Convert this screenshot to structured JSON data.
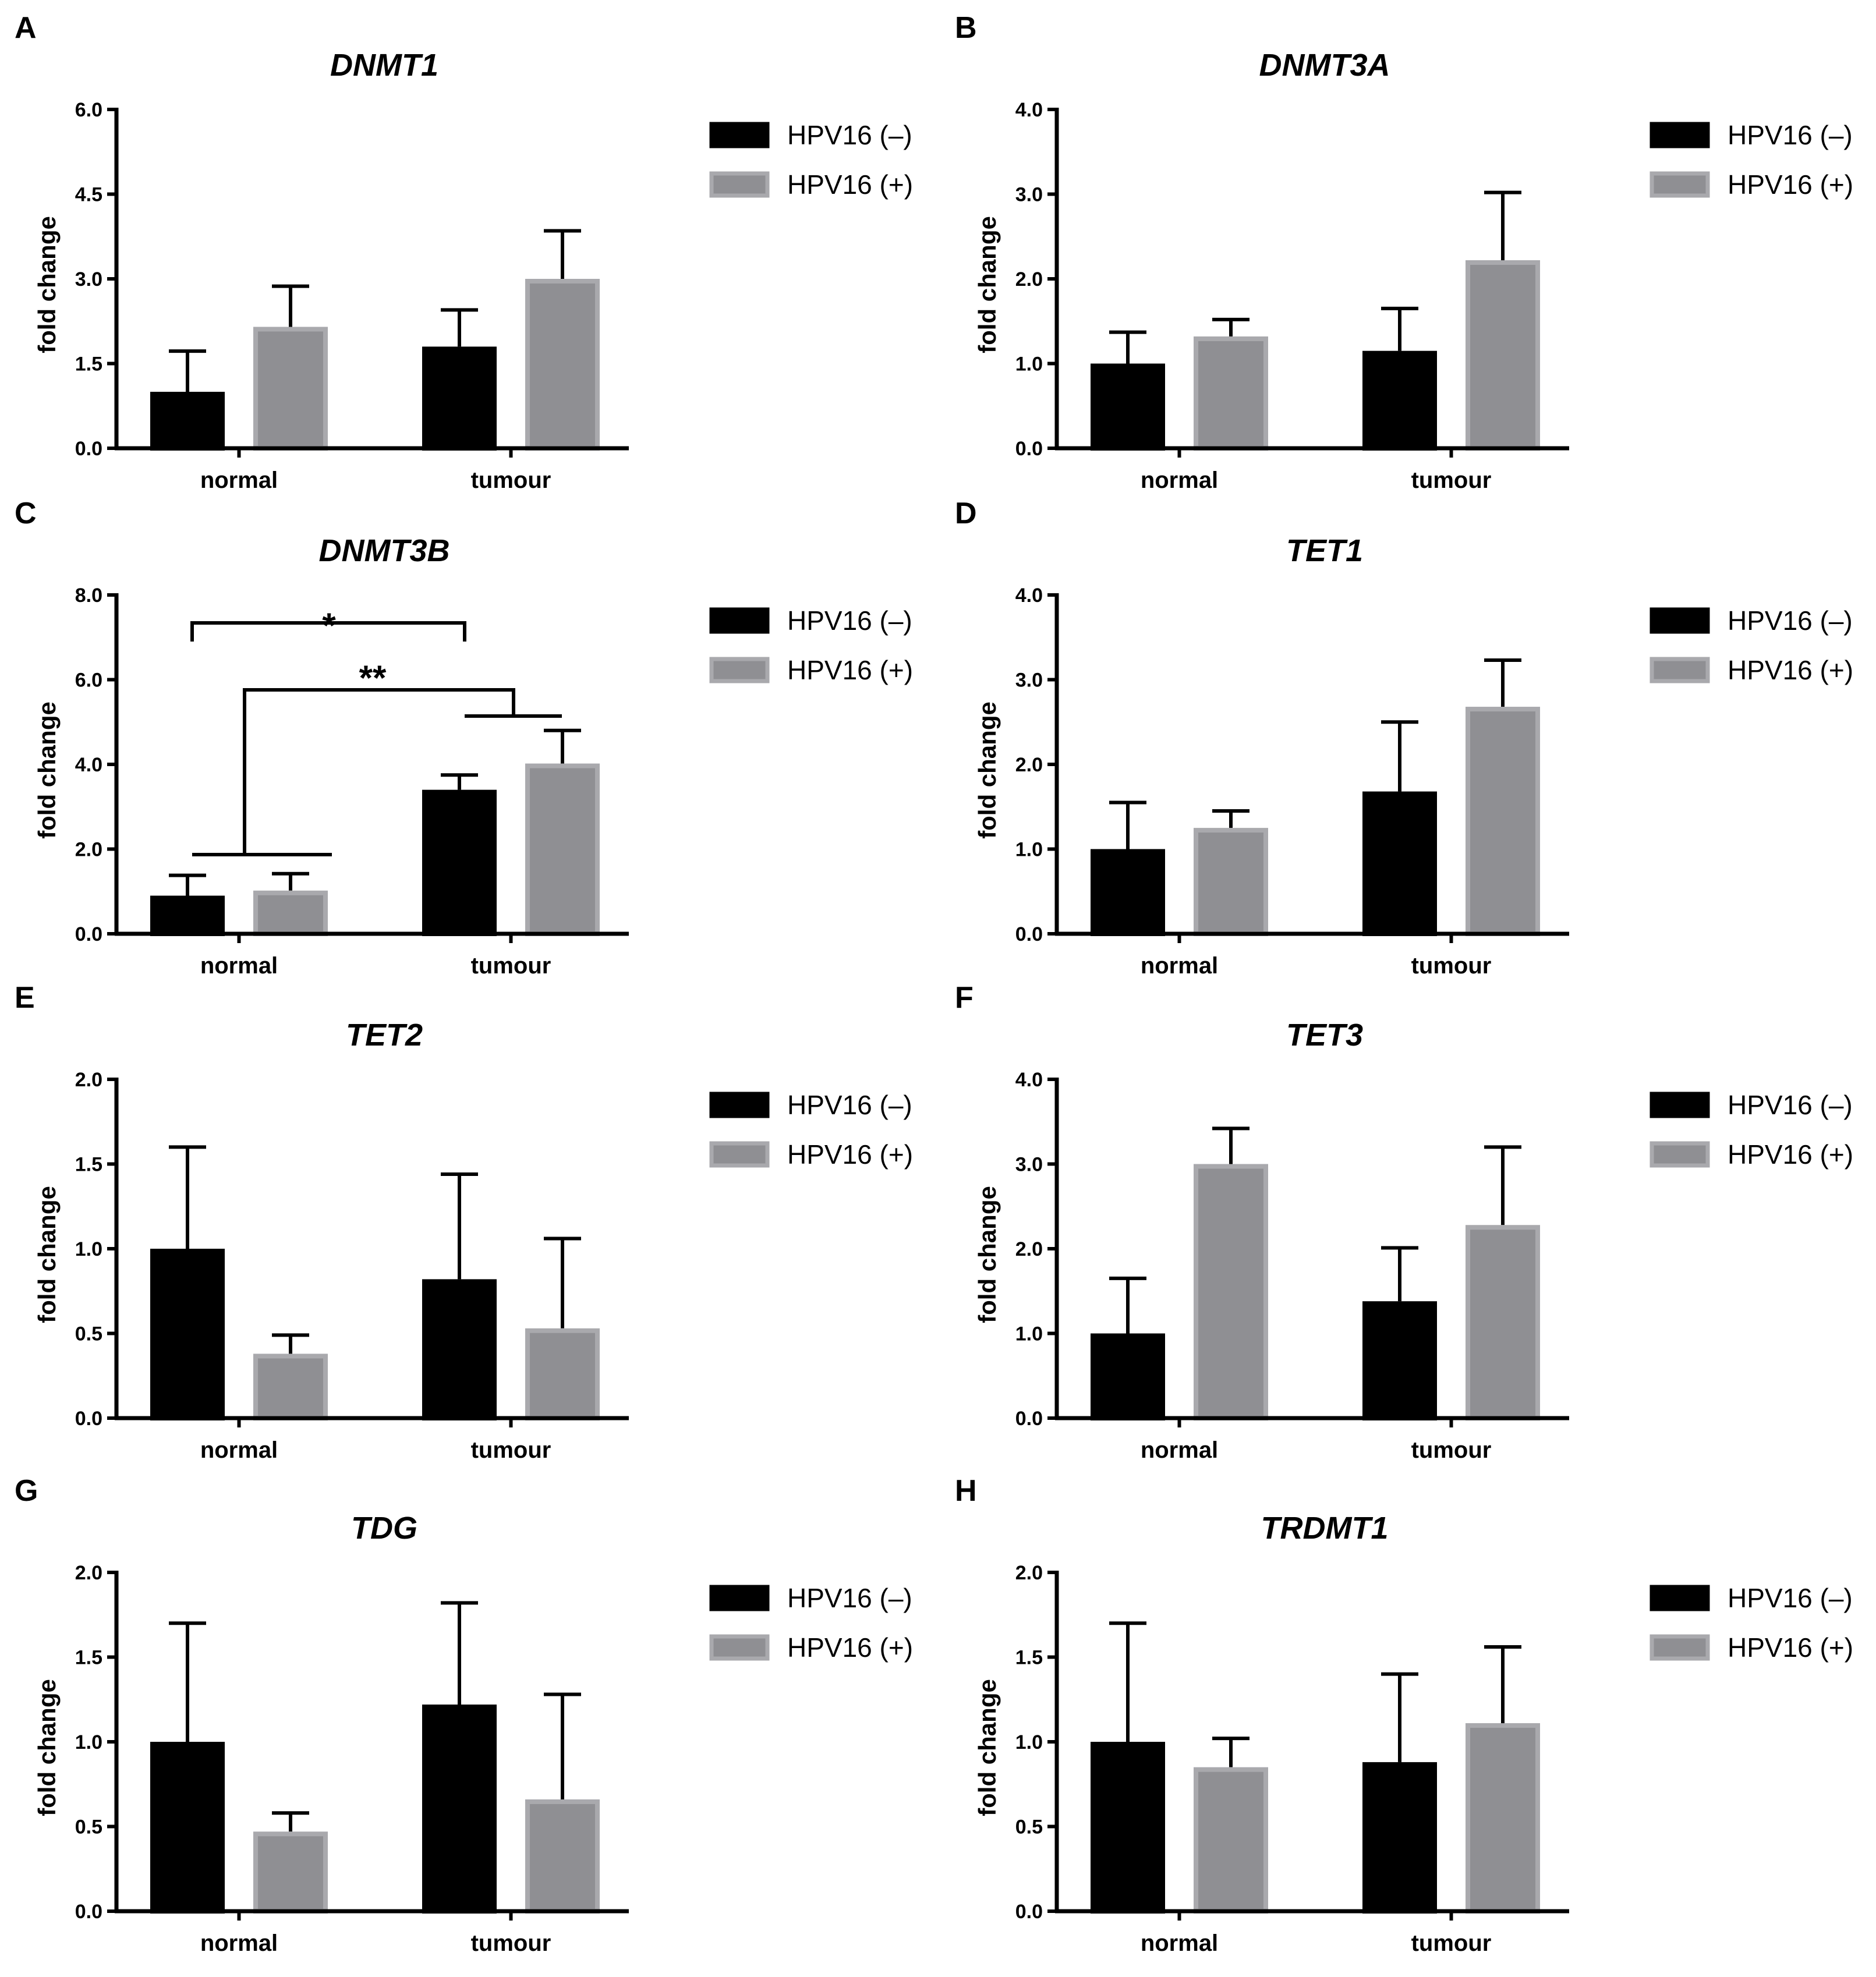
{
  "colors": {
    "hpv_neg_fill": "#000000",
    "hpv_pos_fill": "#8f8f93",
    "hpv_pos_stroke": "#a9a9ad",
    "axis": "#000000"
  },
  "chart_data": [
    {
      "panel": "A",
      "type": "bar",
      "title": "DNMT1",
      "xlabel": "",
      "ylabel": "fold change",
      "categories": [
        "normal",
        "tumour"
      ],
      "ylim": [
        0,
        6.0
      ],
      "yticks": [
        0,
        1.5,
        3.0,
        4.5,
        6.0
      ],
      "ytick_labels": [
        "0.0",
        "1.5",
        "3.0",
        "4.5",
        "6.0"
      ],
      "series": [
        {
          "name": "HPV16 (–)",
          "values": [
            1.0,
            1.8
          ],
          "errors": [
            0.72,
            0.65
          ]
        },
        {
          "name": "HPV16 (+)",
          "values": [
            2.15,
            3.0
          ],
          "errors": [
            0.72,
            0.85
          ]
        }
      ],
      "legend": "top-right",
      "annotations": []
    },
    {
      "panel": "B",
      "type": "bar",
      "title": "DNMT3A",
      "xlabel": "",
      "ylabel": "fold change",
      "categories": [
        "normal",
        "tumour"
      ],
      "ylim": [
        0,
        4.0
      ],
      "yticks": [
        0,
        1.0,
        2.0,
        3.0,
        4.0
      ],
      "ytick_labels": [
        "0.0",
        "1.0",
        "2.0",
        "3.0",
        "4.0"
      ],
      "series": [
        {
          "name": "HPV16 (–)",
          "values": [
            1.0,
            1.15
          ],
          "errors": [
            0.37,
            0.5
          ]
        },
        {
          "name": "HPV16 (+)",
          "values": [
            1.32,
            2.22
          ],
          "errors": [
            0.2,
            0.8
          ]
        }
      ],
      "legend": "top-right",
      "annotations": []
    },
    {
      "panel": "C",
      "type": "bar",
      "title": "DNMT3B",
      "xlabel": "",
      "ylabel": "fold change",
      "categories": [
        "normal",
        "tumour"
      ],
      "ylim": [
        0,
        8.0
      ],
      "yticks": [
        0,
        2.0,
        4.0,
        6.0,
        8.0
      ],
      "ytick_labels": [
        "0.0",
        "2.0",
        "4.0",
        "6.0",
        "8.0"
      ],
      "series": [
        {
          "name": "HPV16 (–)",
          "values": [
            0.9,
            3.4
          ],
          "errors": [
            0.48,
            0.35
          ]
        },
        {
          "name": "HPV16 (+)",
          "values": [
            1.02,
            4.02
          ],
          "errors": [
            0.4,
            0.78
          ]
        }
      ],
      "legend": "top-right",
      "annotations": [
        {
          "label": "*",
          "from": "normal / HPV16 (–)",
          "to": "tumour / HPV16 (–)"
        },
        {
          "label": "**",
          "from": "normal (both groups)",
          "to": "tumour (both groups)"
        }
      ]
    },
    {
      "panel": "D",
      "type": "bar",
      "title": "TET1",
      "xlabel": "",
      "ylabel": "fold change",
      "categories": [
        "normal",
        "tumour"
      ],
      "ylim": [
        0,
        4.0
      ],
      "yticks": [
        0,
        1.0,
        2.0,
        3.0,
        4.0
      ],
      "ytick_labels": [
        "0.0",
        "1.0",
        "2.0",
        "3.0",
        "4.0"
      ],
      "series": [
        {
          "name": "HPV16 (–)",
          "values": [
            1.0,
            1.68
          ],
          "errors": [
            0.55,
            0.82
          ]
        },
        {
          "name": "HPV16 (+)",
          "values": [
            1.25,
            2.68
          ],
          "errors": [
            0.2,
            0.55
          ]
        }
      ],
      "legend": "top-right",
      "annotations": []
    },
    {
      "panel": "E",
      "type": "bar",
      "title": "TET2",
      "xlabel": "",
      "ylabel": "fold change",
      "categories": [
        "normal",
        "tumour"
      ],
      "ylim": [
        0,
        2.0
      ],
      "yticks": [
        0,
        0.5,
        1.0,
        1.5,
        2.0
      ],
      "ytick_labels": [
        "0.0",
        "0.5",
        "1.0",
        "1.5",
        "2.0"
      ],
      "series": [
        {
          "name": "HPV16 (–)",
          "values": [
            1.0,
            0.82
          ],
          "errors": [
            0.6,
            0.62
          ]
        },
        {
          "name": "HPV16 (+)",
          "values": [
            0.38,
            0.53
          ],
          "errors": [
            0.11,
            0.53
          ]
        }
      ],
      "legend": "top-right",
      "annotations": []
    },
    {
      "panel": "F",
      "type": "bar",
      "title": "TET3",
      "xlabel": "",
      "ylabel": "fold change",
      "categories": [
        "normal",
        "tumour"
      ],
      "ylim": [
        0,
        4.0
      ],
      "yticks": [
        0,
        1.0,
        2.0,
        3.0,
        4.0
      ],
      "ytick_labels": [
        "0.0",
        "1.0",
        "2.0",
        "3.0",
        "4.0"
      ],
      "series": [
        {
          "name": "HPV16 (–)",
          "values": [
            1.0,
            1.38
          ],
          "errors": [
            0.65,
            0.63
          ]
        },
        {
          "name": "HPV16 (+)",
          "values": [
            3.0,
            2.28
          ],
          "errors": [
            0.42,
            0.92
          ]
        }
      ],
      "legend": "top-right",
      "annotations": []
    },
    {
      "panel": "G",
      "type": "bar",
      "title": "TDG",
      "xlabel": "",
      "ylabel": "fold change",
      "categories": [
        "normal",
        "tumour"
      ],
      "ylim": [
        0,
        2.0
      ],
      "yticks": [
        0,
        0.5,
        1.0,
        1.5,
        2.0
      ],
      "ytick_labels": [
        "0.0",
        "0.5",
        "1.0",
        "1.5",
        "2.0"
      ],
      "series": [
        {
          "name": "HPV16 (–)",
          "values": [
            1.0,
            1.22
          ],
          "errors": [
            0.7,
            0.6
          ]
        },
        {
          "name": "HPV16 (+)",
          "values": [
            0.47,
            0.66
          ],
          "errors": [
            0.11,
            0.62
          ]
        }
      ],
      "legend": "top-right",
      "annotations": []
    },
    {
      "panel": "H",
      "type": "bar",
      "title": "TRDMT1",
      "xlabel": "",
      "ylabel": "fold change",
      "categories": [
        "normal",
        "tumour"
      ],
      "ylim": [
        0,
        2.0
      ],
      "yticks": [
        0,
        0.5,
        1.0,
        1.5,
        2.0
      ],
      "ytick_labels": [
        "0.0",
        "0.5",
        "1.0",
        "1.5",
        "2.0"
      ],
      "series": [
        {
          "name": "HPV16 (–)",
          "values": [
            1.0,
            0.88
          ],
          "errors": [
            0.7,
            0.52
          ]
        },
        {
          "name": "HPV16 (+)",
          "values": [
            0.85,
            1.11
          ],
          "errors": [
            0.17,
            0.45
          ]
        }
      ],
      "legend": "top-right",
      "annotations": []
    }
  ]
}
